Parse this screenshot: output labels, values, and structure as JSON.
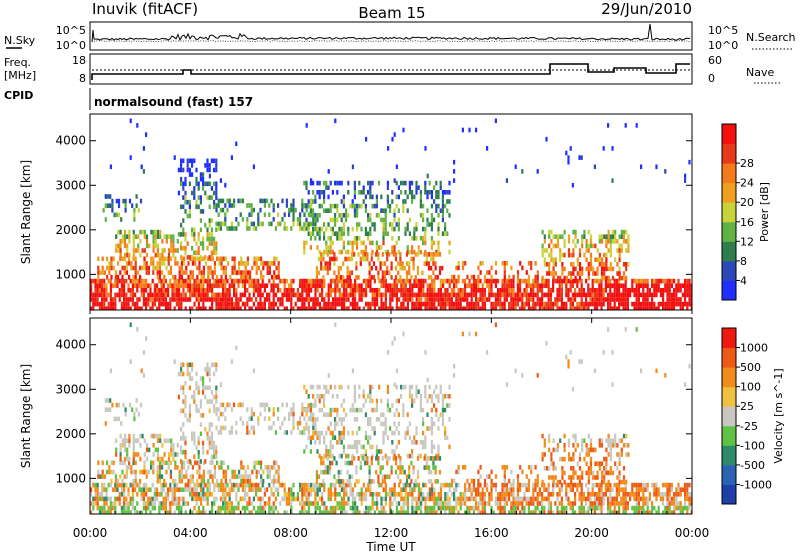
{
  "header": {
    "site": "Inuvik (fitACF)",
    "beam": "Beam 15",
    "date": "29/Jun/2010"
  },
  "noise_panel": {
    "left_label": "N.Sky",
    "right_label": "N.Search",
    "left_ticks": [
      "10^5",
      "10^0"
    ],
    "right_ticks": [
      "10^5",
      "10^0"
    ]
  },
  "freq_panel": {
    "left_label_top": "Freq.",
    "left_label_unit": "[MHz]",
    "left_ticks": [
      "18",
      "8"
    ],
    "right_label": "Nave",
    "right_ticks": [
      "60",
      "0"
    ],
    "cpid_label": "CPID"
  },
  "cpid_panel": {
    "mode_text": "normalsound (fast) 157"
  },
  "time_axis": {
    "label": "Time UT",
    "ticks": [
      "00:00",
      "04:00",
      "08:00",
      "12:00",
      "16:00",
      "20:00",
      "00:00"
    ]
  },
  "chart_data": [
    {
      "type": "heatmap",
      "name": "power",
      "ylabel": "Slant Range [km]",
      "yticks": [
        "1000",
        "2000",
        "3000",
        "4000"
      ],
      "ylim": [
        200,
        4600
      ],
      "xlim_hours": [
        0,
        24
      ],
      "colorbar": {
        "label": "Power [dB]",
        "ticks": [
          "4",
          "8",
          "12",
          "16",
          "20",
          "24",
          "28"
        ],
        "colors": [
          "#1f2fff",
          "#2c47b8",
          "#2e7d4f",
          "#5fb245",
          "#c8d33a",
          "#f0a020",
          "#f57a1c",
          "#e83a18",
          "#f21010"
        ]
      }
    },
    {
      "type": "heatmap",
      "name": "velocity",
      "ylabel": "Slant Range [km]",
      "yticks": [
        "1000",
        "2000",
        "3000",
        "4000"
      ],
      "ylim": [
        200,
        4600
      ],
      "xlim_hours": [
        0,
        24
      ],
      "colorbar": {
        "label": "Velocity [m s^-1]",
        "ticks": [
          "1000",
          "500",
          "100",
          "25",
          "-25",
          "-100",
          "-500",
          "-1000"
        ],
        "colors": [
          "#1d3fa8",
          "#2a63b4",
          "#2f8a6a",
          "#5fc244",
          "#c8c8c0",
          "#f0c040",
          "#f28a1c",
          "#ee5a16",
          "#ee1a10"
        ]
      }
    }
  ]
}
